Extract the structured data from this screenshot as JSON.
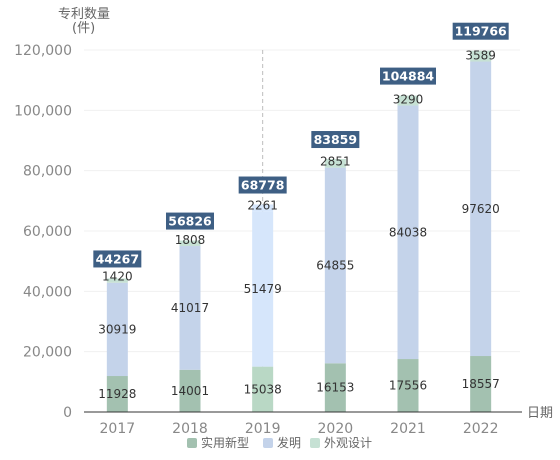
{
  "chart_data": {
    "type": "bar",
    "stacked": true,
    "ylabel_line1": "专利数量",
    "ylabel_line2": "(件)",
    "xlabel": "日期",
    "categories": [
      "2017",
      "2018",
      "2019",
      "2020",
      "2021",
      "2022"
    ],
    "y_ticks": [
      0,
      20000,
      40000,
      60000,
      80000,
      100000,
      120000
    ],
    "y_tick_labels": [
      "0",
      "20,000",
      "40,000",
      "60,000",
      "80,000",
      "100,000",
      "120,000"
    ],
    "ylim": [
      0,
      120000
    ],
    "series": [
      {
        "name": "实用新型",
        "color": "#a3c1b0",
        "values": [
          11928,
          14001,
          15038,
          16153,
          17556,
          18557
        ]
      },
      {
        "name": "发明",
        "color": "#c4d3ea",
        "values": [
          30919,
          41017,
          51479,
          64855,
          84038,
          97620
        ]
      },
      {
        "name": "外观设计",
        "color": "#c6e1d4",
        "values": [
          1420,
          1808,
          2261,
          2851,
          3290,
          3589
        ]
      }
    ],
    "totals": [
      44267,
      56826,
      68778,
      83859,
      104884,
      119766
    ],
    "highlight_index": 2,
    "highlight_colors": [
      "#b9d8c5",
      "#d6e6fb",
      "#d6e6fb"
    ],
    "total_label_color": "#3e5f84",
    "legend_position": "bottom",
    "grid": true
  }
}
